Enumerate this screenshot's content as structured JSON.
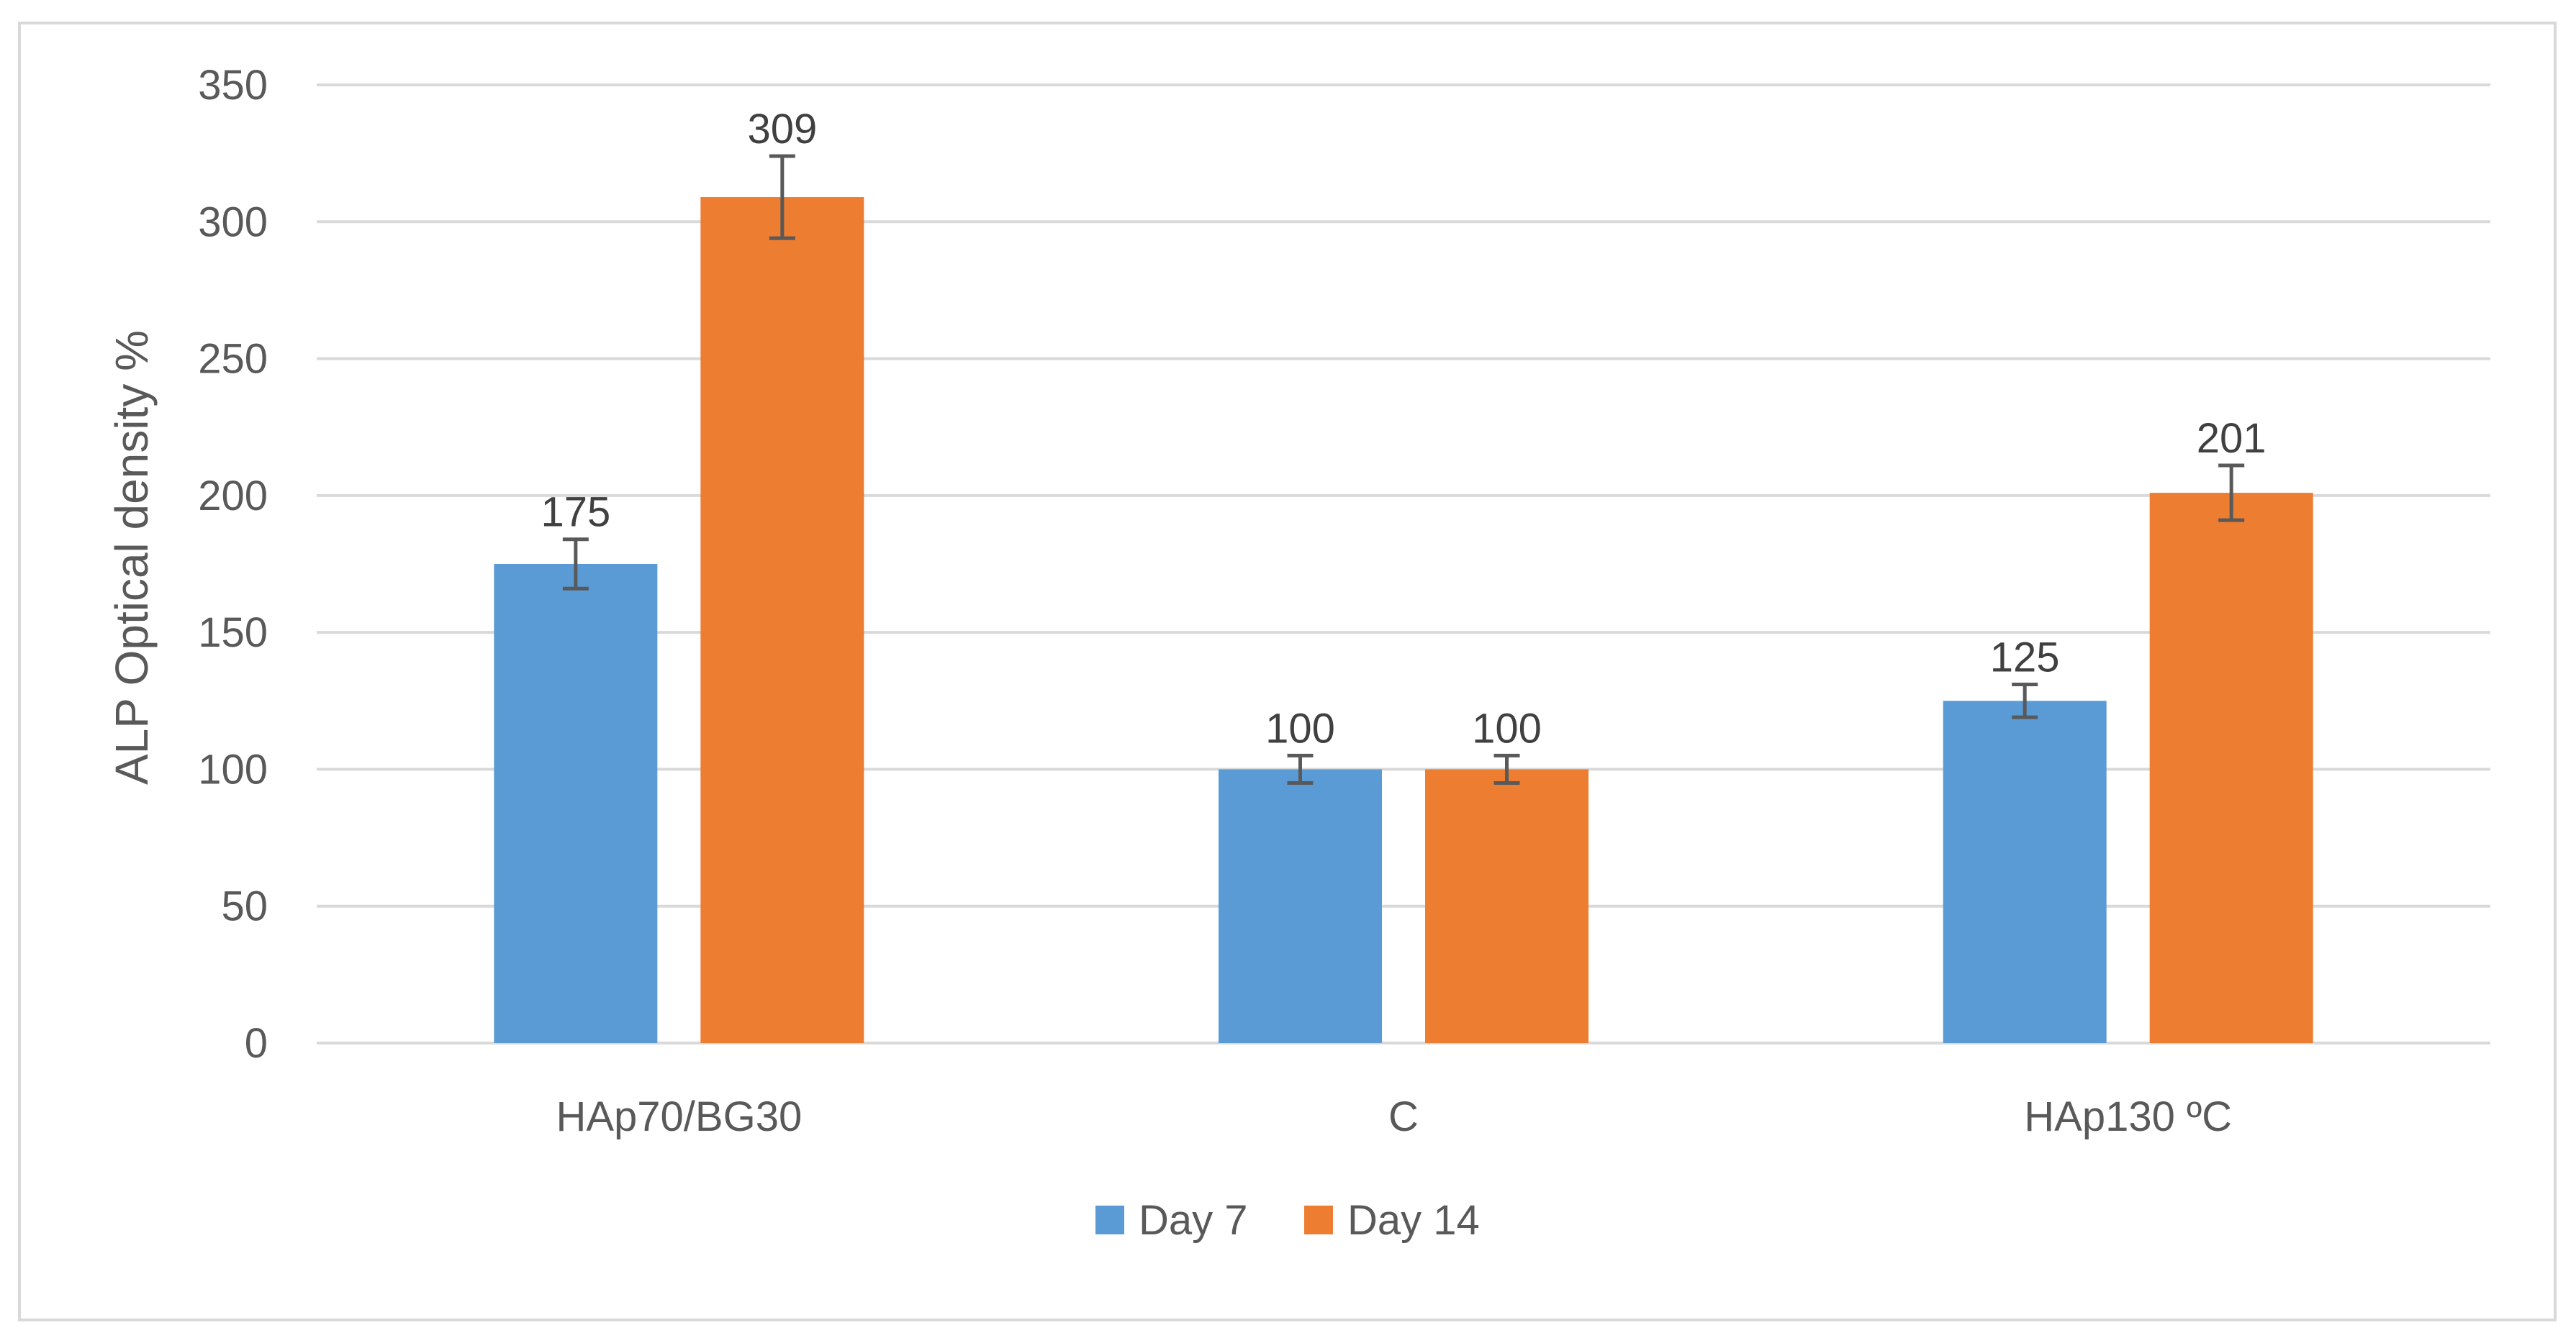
{
  "chart_data": {
    "type": "bar",
    "categories": [
      "HAp70/BG30",
      "C",
      "HAp130 ºC"
    ],
    "series": [
      {
        "name": "Day 7",
        "values": [
          175,
          100,
          125
        ],
        "errors": [
          9,
          5,
          6
        ],
        "color": "#5b9bd5"
      },
      {
        "name": "Day 14",
        "values": [
          309,
          100,
          201
        ],
        "errors": [
          15,
          5,
          10
        ],
        "color": "#ed7d31"
      }
    ],
    "title": "",
    "xlabel": "",
    "ylabel": "ALP Optical density %",
    "ylim": [
      0,
      350
    ],
    "yticks": [
      0,
      50,
      100,
      150,
      200,
      250,
      300,
      350
    ],
    "grid": true,
    "legend_position": "bottom",
    "colors": {
      "gridline": "#d9d9d9",
      "errorbar": "#595959",
      "frame": "#d9d9d9"
    }
  }
}
